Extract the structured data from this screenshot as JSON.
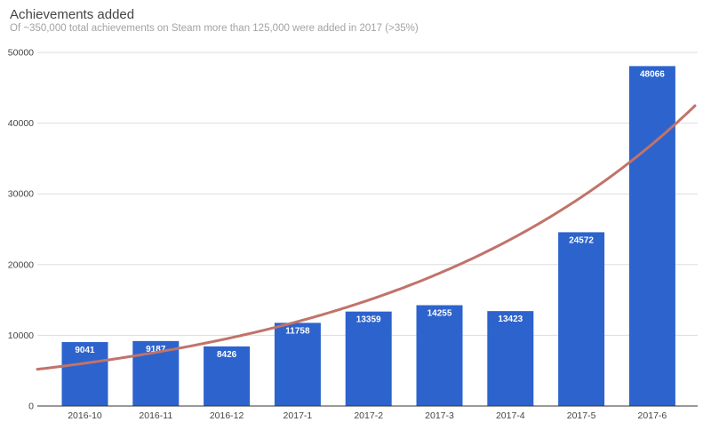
{
  "chart_data": {
    "type": "bar",
    "title": "Achievements added",
    "subtitle": "Of ~350,000 total achievements on Steam more than 125,000 were added in 2017 (>35%)",
    "categories": [
      "2016-10",
      "2016-11",
      "2016-12",
      "2017-1",
      "2017-2",
      "2017-3",
      "2017-4",
      "2017-5",
      "2017-6"
    ],
    "series": [
      {
        "values": [
          9041,
          9187,
          8426,
          11758,
          13359,
          14255,
          13423,
          24572,
          48066
        ],
        "color": "#2d63cc",
        "data_labels": [
          "9041",
          "9187",
          "8426",
          "11758",
          "13359",
          "14255",
          "13423",
          "24572",
          "48066"
        ]
      }
    ],
    "trendline": {
      "type": "exponential",
      "color": "#c1736a",
      "start_value": 5200,
      "end_value": 42700
    },
    "yticks": [
      0,
      10000,
      20000,
      30000,
      40000,
      50000
    ],
    "ytick_labels": [
      "0",
      "10000",
      "20000",
      "30000",
      "40000",
      "50000"
    ],
    "ylim": [
      0,
      50000
    ],
    "grid": true,
    "legend": "none",
    "colors": {
      "grid": "#dddddd",
      "axis": "#333333"
    }
  }
}
